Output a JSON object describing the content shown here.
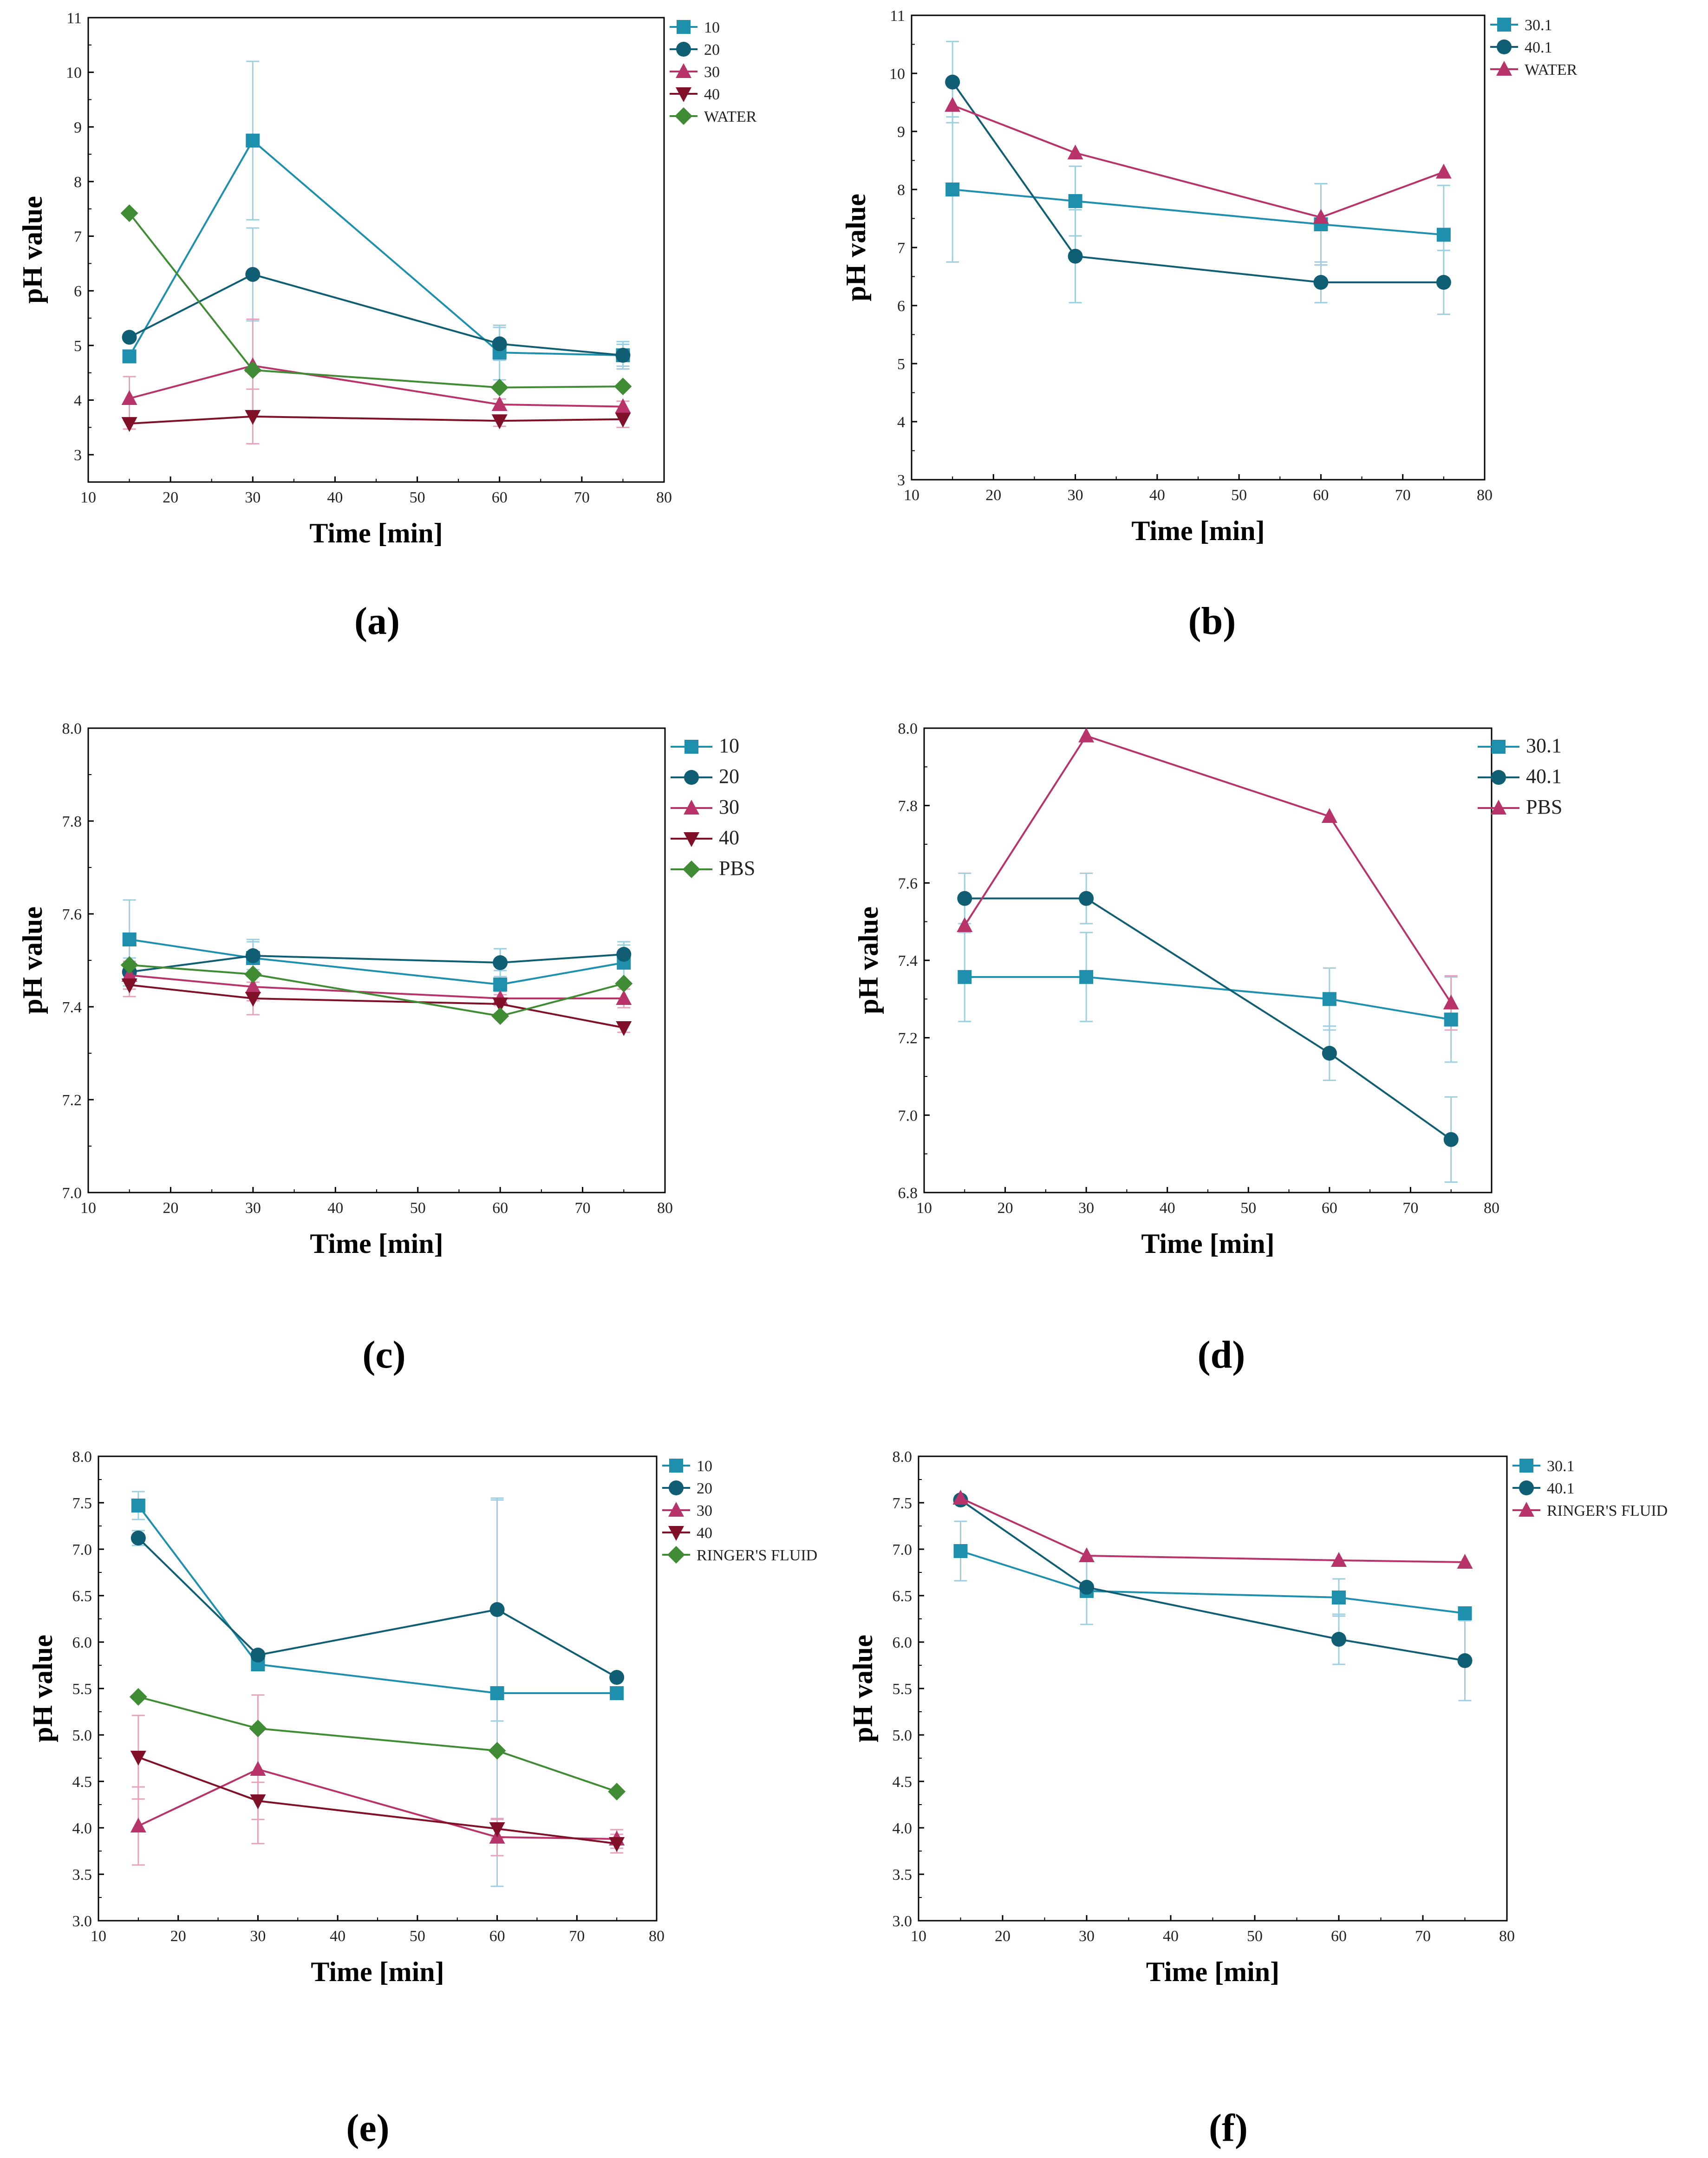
{
  "colors": {
    "s10": "#1f8fae",
    "s20": "#0f5e73",
    "s30": "#b8336a",
    "s40": "#7f1028",
    "ref": "#3f8c35",
    "err10": "#9ecfe0",
    "err30": "#e4a3bd"
  },
  "chart_data": [
    {
      "type": "line",
      "panel": "(a)",
      "xlabel": "Time [min]",
      "ylabel": "pH value",
      "xlim": [
        10,
        80
      ],
      "ylim": [
        2.5,
        11
      ],
      "xticks": [
        "10",
        "20",
        "30",
        "40",
        "50",
        "60",
        "70",
        "80"
      ],
      "yticks": [
        "3",
        "4",
        "5",
        "6",
        "7",
        "8",
        "9",
        "10",
        "11"
      ],
      "ytick_values": [
        3,
        4,
        5,
        6,
        7,
        8,
        9,
        10,
        11
      ],
      "legend": "top-right",
      "legend_large": false,
      "x": [
        15,
        30,
        60,
        75
      ],
      "series": [
        {
          "name": "10",
          "marker": "square",
          "color": "s10",
          "values": [
            4.8,
            8.75,
            4.87,
            4.82
          ],
          "errors": [
            0,
            1.45,
            0.5,
            0.25
          ]
        },
        {
          "name": "20",
          "marker": "circle",
          "color": "s20",
          "values": [
            5.15,
            6.3,
            5.03,
            4.82
          ],
          "errors": [
            0,
            0.85,
            0.3,
            0.2
          ]
        },
        {
          "name": "30",
          "marker": "triangle",
          "color": "s30",
          "values": [
            4.03,
            4.63,
            3.92,
            3.88
          ],
          "errors": [
            0.4,
            0.85,
            0.1,
            0.1
          ]
        },
        {
          "name": "40",
          "marker": "triangle-down",
          "color": "s40",
          "values": [
            3.57,
            3.7,
            3.62,
            3.65
          ],
          "errors": [
            0.1,
            0.5,
            0.1,
            0.15
          ]
        },
        {
          "name": "WATER",
          "marker": "diamond",
          "color": "ref",
          "values": [
            7.42,
            4.55,
            4.23,
            4.25
          ],
          "errors": [
            0,
            0,
            0,
            0
          ]
        }
      ]
    },
    {
      "type": "line",
      "panel": "(b)",
      "xlabel": "Time [min]",
      "ylabel": "pH value",
      "xlim": [
        10,
        80
      ],
      "ylim": [
        3,
        11
      ],
      "xticks": [
        "10",
        "20",
        "30",
        "40",
        "50",
        "60",
        "70",
        "80"
      ],
      "yticks": [
        "3",
        "4",
        "5",
        "6",
        "7",
        "8",
        "9",
        "10",
        "11"
      ],
      "ytick_values": [
        3,
        4,
        5,
        6,
        7,
        8,
        9,
        10,
        11
      ],
      "legend": "top-right",
      "legend_large": false,
      "x": [
        15,
        30,
        60,
        75
      ],
      "series": [
        {
          "name": "30.1",
          "marker": "square",
          "color": "s10",
          "values": [
            8.0,
            7.8,
            7.4,
            7.22
          ],
          "errors": [
            1.25,
            0.6,
            0.7,
            0.85
          ]
        },
        {
          "name": "40.1",
          "marker": "circle",
          "color": "s20",
          "values": [
            9.85,
            6.85,
            6.4,
            6.4
          ],
          "errors": [
            0.7,
            0.8,
            0.35,
            0.55
          ]
        },
        {
          "name": "WATER",
          "marker": "triangle",
          "color": "s30",
          "values": [
            9.45,
            8.63,
            7.52,
            8.3
          ],
          "errors": [
            0,
            0,
            0,
            0
          ]
        }
      ]
    },
    {
      "type": "line",
      "panel": "(c)",
      "xlabel": "Time [min]",
      "ylabel": "pH value",
      "xlim": [
        10,
        80
      ],
      "ylim": [
        7.0,
        8.0
      ],
      "xticks": [
        "10",
        "20",
        "30",
        "40",
        "50",
        "60",
        "70",
        "80"
      ],
      "yticks": [
        "7.0",
        "7.2",
        "7.4",
        "7.6",
        "7.8",
        "8.0"
      ],
      "ytick_values": [
        7.0,
        7.2,
        7.4,
        7.6,
        7.8,
        8.0
      ],
      "legend": "top-right",
      "legend_large": true,
      "x": [
        15,
        30,
        60,
        75
      ],
      "series": [
        {
          "name": "10",
          "marker": "square",
          "color": "s10",
          "values": [
            7.545,
            7.505,
            7.448,
            7.495
          ],
          "errors": [
            0.085,
            0.04,
            0.03,
            0.045
          ]
        },
        {
          "name": "20",
          "marker": "circle",
          "color": "s20",
          "values": [
            7.475,
            7.51,
            7.495,
            7.513
          ],
          "errors": [
            0.03,
            0.03,
            0.03,
            0.02
          ]
        },
        {
          "name": "30",
          "marker": "triangle",
          "color": "s30",
          "values": [
            7.468,
            7.443,
            7.418,
            7.418
          ],
          "errors": [
            0.03,
            0.03,
            0.015,
            0.02
          ]
        },
        {
          "name": "40",
          "marker": "triangle-down",
          "color": "s40",
          "values": [
            7.447,
            7.418,
            7.406,
            7.355
          ],
          "errors": [
            0.025,
            0.035,
            0.02,
            0.01
          ]
        },
        {
          "name": "PBS",
          "marker": "diamond",
          "color": "ref",
          "values": [
            7.49,
            7.47,
            7.38,
            7.45
          ],
          "errors": [
            0,
            0,
            0,
            0
          ]
        }
      ]
    },
    {
      "type": "line",
      "panel": "(d)",
      "xlabel": "Time [min]",
      "ylabel": "pH value",
      "xlim": [
        10,
        80
      ],
      "ylim": [
        6.8,
        8.0
      ],
      "xticks": [
        "10",
        "20",
        "30",
        "40",
        "50",
        "60",
        "70",
        "80"
      ],
      "yticks": [
        "6.8",
        "7.0",
        "7.2",
        "7.4",
        "7.6",
        "7.8",
        "8.0"
      ],
      "ytick_values": [
        6.8,
        7.0,
        7.2,
        7.4,
        7.6,
        7.8,
        8.0
      ],
      "legend": "top-right-outside",
      "legend_large": true,
      "x": [
        15,
        30,
        60,
        75
      ],
      "series": [
        {
          "name": "30.1",
          "marker": "square",
          "color": "s10",
          "values": [
            7.357,
            7.357,
            7.3,
            7.247
          ],
          "errors": [
            0.115,
            0.115,
            0.08,
            0.11
          ]
        },
        {
          "name": "40.1",
          "marker": "circle",
          "color": "s20",
          "values": [
            7.56,
            7.56,
            7.16,
            6.937
          ],
          "errors": [
            0.065,
            0.065,
            0.07,
            0.11
          ]
        },
        {
          "name": "PBS",
          "marker": "triangle",
          "color": "s30",
          "values": [
            7.49,
            7.98,
            7.772,
            7.29
          ],
          "errors": [
            0,
            0,
            0,
            0.07
          ]
        }
      ]
    },
    {
      "type": "line",
      "panel": "(e)",
      "xlabel": "Time [min]",
      "ylabel": "pH value",
      "xlim": [
        10,
        80
      ],
      "ylim": [
        3.0,
        8.0
      ],
      "xticks": [
        "10",
        "20",
        "30",
        "40",
        "50",
        "60",
        "70",
        "80"
      ],
      "yticks": [
        "3.0",
        "3.5",
        "4.0",
        "4.5",
        "5.0",
        "5.5",
        "6.0",
        "6.5",
        "7.0",
        "7.5",
        "8.0"
      ],
      "ytick_values": [
        3.0,
        3.5,
        4.0,
        4.5,
        5.0,
        5.5,
        6.0,
        6.5,
        7.0,
        7.5,
        8.0
      ],
      "legend": "top-right",
      "legend_large": false,
      "x": [
        15,
        30,
        60,
        75
      ],
      "series": [
        {
          "name": "10",
          "marker": "square",
          "color": "s10",
          "values": [
            7.47,
            5.76,
            5.45,
            5.45
          ],
          "errors": [
            0.15,
            0,
            2.08,
            0
          ]
        },
        {
          "name": "20",
          "marker": "circle",
          "color": "s20",
          "values": [
            7.12,
            5.86,
            6.35,
            5.62
          ],
          "errors": [
            0.08,
            0,
            1.2,
            0
          ]
        },
        {
          "name": "30",
          "marker": "triangle",
          "color": "s30",
          "values": [
            4.02,
            4.63,
            3.9,
            3.88
          ],
          "errors": [
            0.42,
            0.8,
            0.2,
            0.1
          ]
        },
        {
          "name": "40",
          "marker": "triangle-down",
          "color": "s40",
          "values": [
            4.76,
            4.29,
            3.99,
            3.83
          ],
          "errors": [
            0.45,
            0.2,
            0.1,
            0.1
          ]
        },
        {
          "name": "RINGER'S FLUID",
          "marker": "diamond",
          "color": "ref",
          "values": [
            5.41,
            5.07,
            4.83,
            4.39
          ],
          "errors": [
            0,
            0,
            0,
            0
          ]
        }
      ]
    },
    {
      "type": "line",
      "panel": "(f)",
      "xlabel": "Time [min]",
      "ylabel": "pH value",
      "xlim": [
        10,
        80
      ],
      "ylim": [
        3.0,
        8.0
      ],
      "xticks": [
        "10",
        "20",
        "30",
        "40",
        "50",
        "60",
        "70",
        "80"
      ],
      "yticks": [
        "3.0",
        "3.5",
        "4.0",
        "4.5",
        "5.0",
        "5.5",
        "6.0",
        "6.5",
        "7.0",
        "7.5",
        "8.0"
      ],
      "ytick_values": [
        3.0,
        3.5,
        4.0,
        4.5,
        5.0,
        5.5,
        6.0,
        6.5,
        7.0,
        7.5,
        8.0
      ],
      "legend": "top-right",
      "legend_large": false,
      "x": [
        15,
        30,
        60,
        75
      ],
      "series": [
        {
          "name": "30.1",
          "marker": "square",
          "color": "s10",
          "values": [
            6.98,
            6.55,
            6.48,
            6.31
          ],
          "errors": [
            0.32,
            0.36,
            0.2,
            0
          ]
        },
        {
          "name": "40.1",
          "marker": "circle",
          "color": "s20",
          "values": [
            7.53,
            6.59,
            6.03,
            5.8
          ],
          "errors": [
            0,
            0,
            0.27,
            0.43
          ]
        },
        {
          "name": "RINGER'S FLUID",
          "marker": "triangle",
          "color": "s30",
          "values": [
            7.55,
            6.93,
            6.88,
            6.86
          ],
          "errors": [
            0,
            0,
            0,
            0
          ]
        }
      ]
    }
  ]
}
